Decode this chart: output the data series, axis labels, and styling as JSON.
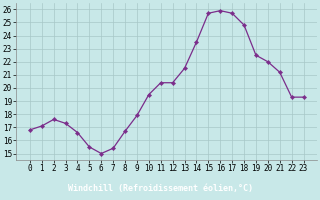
{
  "x": [
    0,
    1,
    2,
    3,
    4,
    5,
    6,
    7,
    8,
    9,
    10,
    11,
    12,
    13,
    14,
    15,
    16,
    17,
    18,
    19,
    20,
    21,
    22,
    23
  ],
  "y": [
    16.8,
    17.1,
    17.6,
    17.3,
    16.6,
    15.5,
    15.0,
    15.4,
    16.7,
    17.9,
    19.5,
    20.4,
    20.4,
    21.5,
    23.5,
    25.7,
    25.9,
    25.7,
    24.8,
    22.5,
    22.0,
    21.2,
    19.3,
    19.3
  ],
  "line_color": "#7B2D8B",
  "marker": "D",
  "marker_size": 2.2,
  "bg_color": "#c8e8e8",
  "grid_color": "#a8c8c8",
  "xlabel": "Windchill (Refroidissement éolien,°C)",
  "xlabel_bg": "#7B2D8B",
  "xlabel_fg": "#ffffff",
  "ylim_min": 14.5,
  "ylim_max": 26.5,
  "yticks": [
    15,
    16,
    17,
    18,
    19,
    20,
    21,
    22,
    23,
    24,
    25,
    26
  ],
  "xticks": [
    0,
    1,
    2,
    3,
    4,
    5,
    6,
    7,
    8,
    9,
    10,
    11,
    12,
    13,
    14,
    15,
    16,
    17,
    18,
    19,
    20,
    21,
    22,
    23
  ],
  "tick_fontsize": 5.5,
  "label_fontsize": 6.0,
  "ytick_fontsize": 5.5
}
